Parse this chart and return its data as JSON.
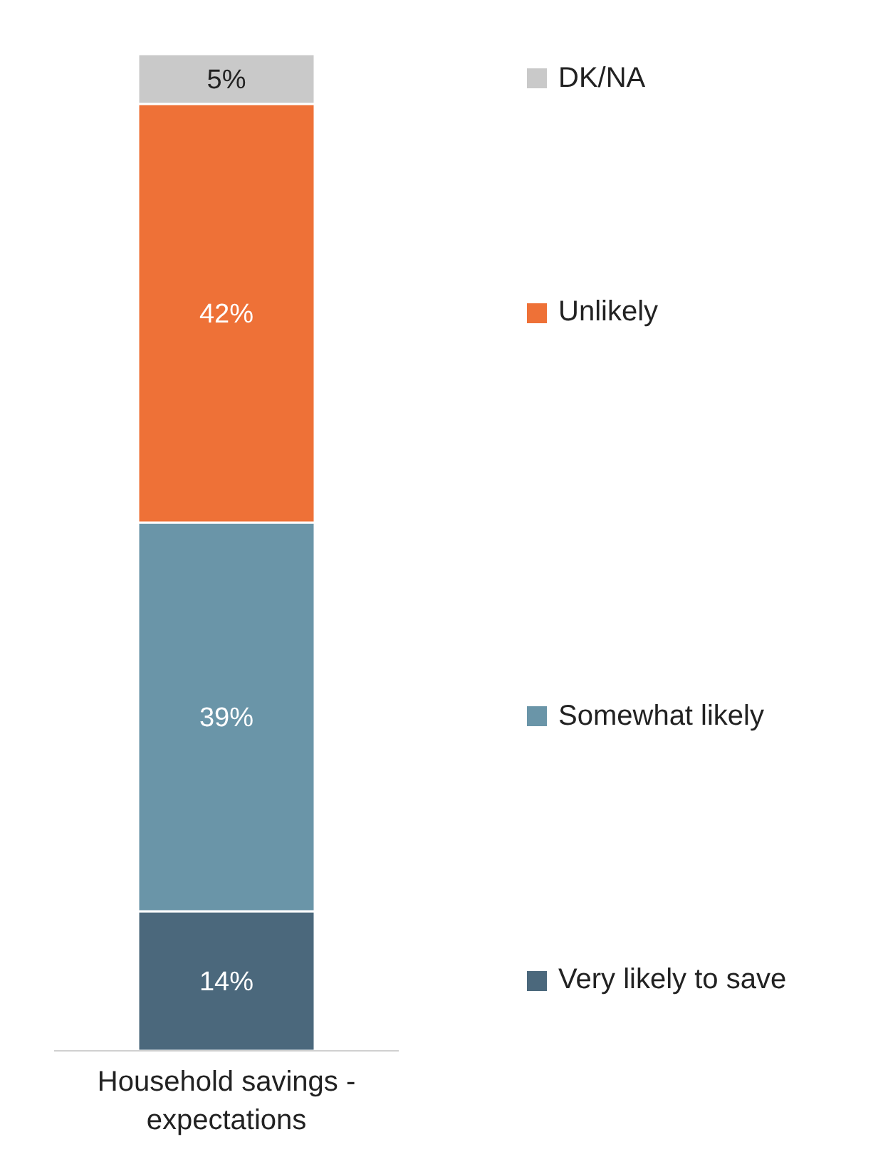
{
  "chart_data": {
    "type": "bar",
    "stacked": true,
    "categories": [
      "Household savings - expectations"
    ],
    "series": [
      {
        "name": "Very likely to save",
        "color": "#4b687c",
        "values": [
          14
        ],
        "value_labels": [
          "14%"
        ]
      },
      {
        "name": "Somewhat likely",
        "color": "#6a95a8",
        "values": [
          39
        ],
        "value_labels": [
          "39%"
        ]
      },
      {
        "name": "Unlikely",
        "color": "#ee7137",
        "values": [
          42
        ],
        "value_labels": [
          "42%"
        ]
      },
      {
        "name": "DK/NA",
        "color": "#c9c9c9",
        "values": [
          5
        ],
        "value_labels": [
          "5%"
        ]
      }
    ],
    "legend": "right",
    "grid": false,
    "tick_labels": "x"
  }
}
